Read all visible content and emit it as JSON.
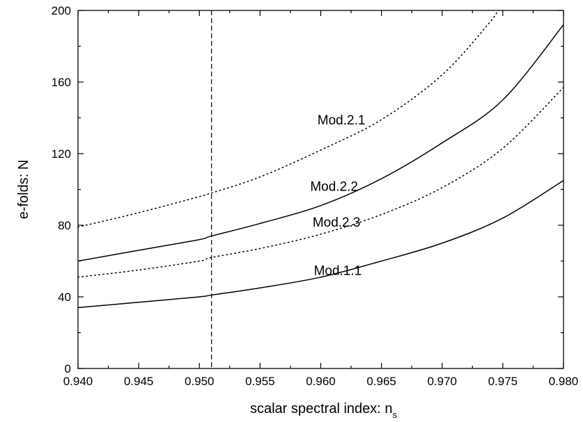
{
  "chart_data": {
    "type": "line",
    "title": "",
    "xlabel": "scalar spectral index:  n",
    "xlabel_subscript": "s",
    "ylabel": "e-folds:  N",
    "xlim": [
      0.94,
      0.98
    ],
    "ylim": [
      0,
      200
    ],
    "xticks": [
      {
        "value": 0.94,
        "label": "0.940"
      },
      {
        "value": 0.945,
        "label": "0.945"
      },
      {
        "value": 0.95,
        "label": "0.950"
      },
      {
        "value": 0.955,
        "label": "0.955"
      },
      {
        "value": 0.96,
        "label": "0.960"
      },
      {
        "value": 0.965,
        "label": "0.965"
      },
      {
        "value": 0.97,
        "label": "0.970"
      },
      {
        "value": 0.975,
        "label": "0.975"
      },
      {
        "value": 0.98,
        "label": "0.980"
      }
    ],
    "yticks": [
      {
        "value": 0,
        "label": "0"
      },
      {
        "value": 40,
        "label": "40"
      },
      {
        "value": 80,
        "label": "80"
      },
      {
        "value": 120,
        "label": "120"
      },
      {
        "value": 160,
        "label": "160"
      },
      {
        "value": 200,
        "label": "200"
      }
    ],
    "grid": false,
    "legend": "none",
    "series": [
      {
        "name": "Mod.2.1",
        "style": "dotted",
        "color": "#000000",
        "x": [
          0.94,
          0.945,
          0.95,
          0.951,
          0.955,
          0.96,
          0.965,
          0.97,
          0.974,
          0.9745
        ],
        "y": [
          79,
          87,
          96,
          98,
          107,
          122,
          139,
          164,
          194,
          200
        ]
      },
      {
        "name": "Mod.2.2",
        "style": "solid",
        "color": "#000000",
        "x": [
          0.94,
          0.945,
          0.95,
          0.951,
          0.955,
          0.96,
          0.965,
          0.97,
          0.975,
          0.98
        ],
        "y": [
          60,
          66,
          72,
          74,
          81,
          91,
          106,
          126,
          150,
          192
        ]
      },
      {
        "name": "Mod.2.3",
        "style": "dotted",
        "color": "#000000",
        "x": [
          0.94,
          0.945,
          0.95,
          0.951,
          0.955,
          0.96,
          0.965,
          0.97,
          0.975,
          0.98
        ],
        "y": [
          51,
          55,
          60,
          62,
          67,
          75,
          86,
          101,
          123,
          157
        ]
      },
      {
        "name": "Mod.1.1",
        "style": "solid",
        "color": "#000000",
        "x": [
          0.94,
          0.945,
          0.95,
          0.951,
          0.955,
          0.96,
          0.965,
          0.97,
          0.975,
          0.98
        ],
        "y": [
          34,
          37,
          40,
          41,
          45,
          51,
          60,
          70,
          84,
          105
        ]
      }
    ],
    "annotations": [
      {
        "text": "Mod.2.1",
        "x": 0.9617,
        "y": 139
      },
      {
        "text": "Mod.2.2",
        "x": 0.9611,
        "y": 102
      },
      {
        "text": "Mod.2.3",
        "x": 0.9613,
        "y": 82
      },
      {
        "text": "Mod.1.1",
        "x": 0.9614,
        "y": 55
      }
    ],
    "vline": {
      "x": 0.951,
      "style": "dashed"
    }
  }
}
